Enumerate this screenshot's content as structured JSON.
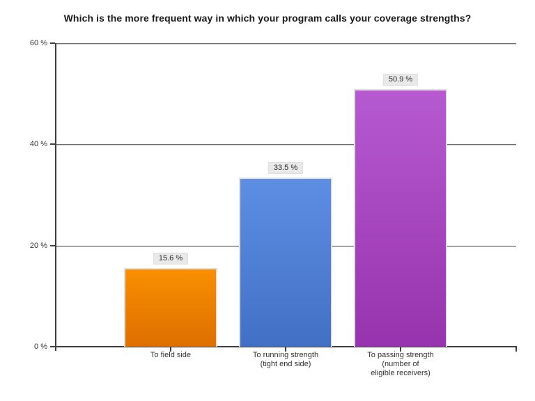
{
  "title": "Which is the more frequent way in which your program calls your coverage strengths?",
  "chart_data": {
    "type": "bar",
    "title": "Which is the more frequent way in which your program calls your coverage strengths?",
    "categories": [
      "To field side",
      "To running strength (tight end side)",
      "To passing strength (number of eligible receivers)"
    ],
    "categories_lines": [
      [
        "To field side"
      ],
      [
        "To running strength",
        "(tight end side)"
      ],
      [
        "To passing strength",
        "(number of",
        "eligible receivers)"
      ]
    ],
    "values": [
      15.6,
      33.5,
      50.9
    ],
    "value_labels": [
      "15.6 %",
      "33.5 %",
      "50.9 %"
    ],
    "xlabel": "",
    "ylabel": "",
    "ylim": [
      0,
      60
    ],
    "y_ticks": [
      0,
      20,
      40,
      60
    ],
    "y_tick_labels": [
      "0 %",
      "20 %",
      "40 %",
      "60 %"
    ],
    "grid": "horizontal",
    "legend": "none",
    "bar_colors": [
      {
        "name": "orange",
        "top": "#F98F00",
        "bottom": "#DD6F00"
      },
      {
        "name": "blue",
        "top": "#5E8EE3",
        "bottom": "#4170C4"
      },
      {
        "name": "purple",
        "top": "#B65AD1",
        "bottom": "#9733AE"
      }
    ]
  },
  "colors": {
    "background": "#ffffff",
    "axis": "#3f3f3f",
    "gridline": "#6d6d6d",
    "value_label_bg": "#e9e9e9",
    "text": "#333333",
    "title_text": "#1a1a1a"
  }
}
